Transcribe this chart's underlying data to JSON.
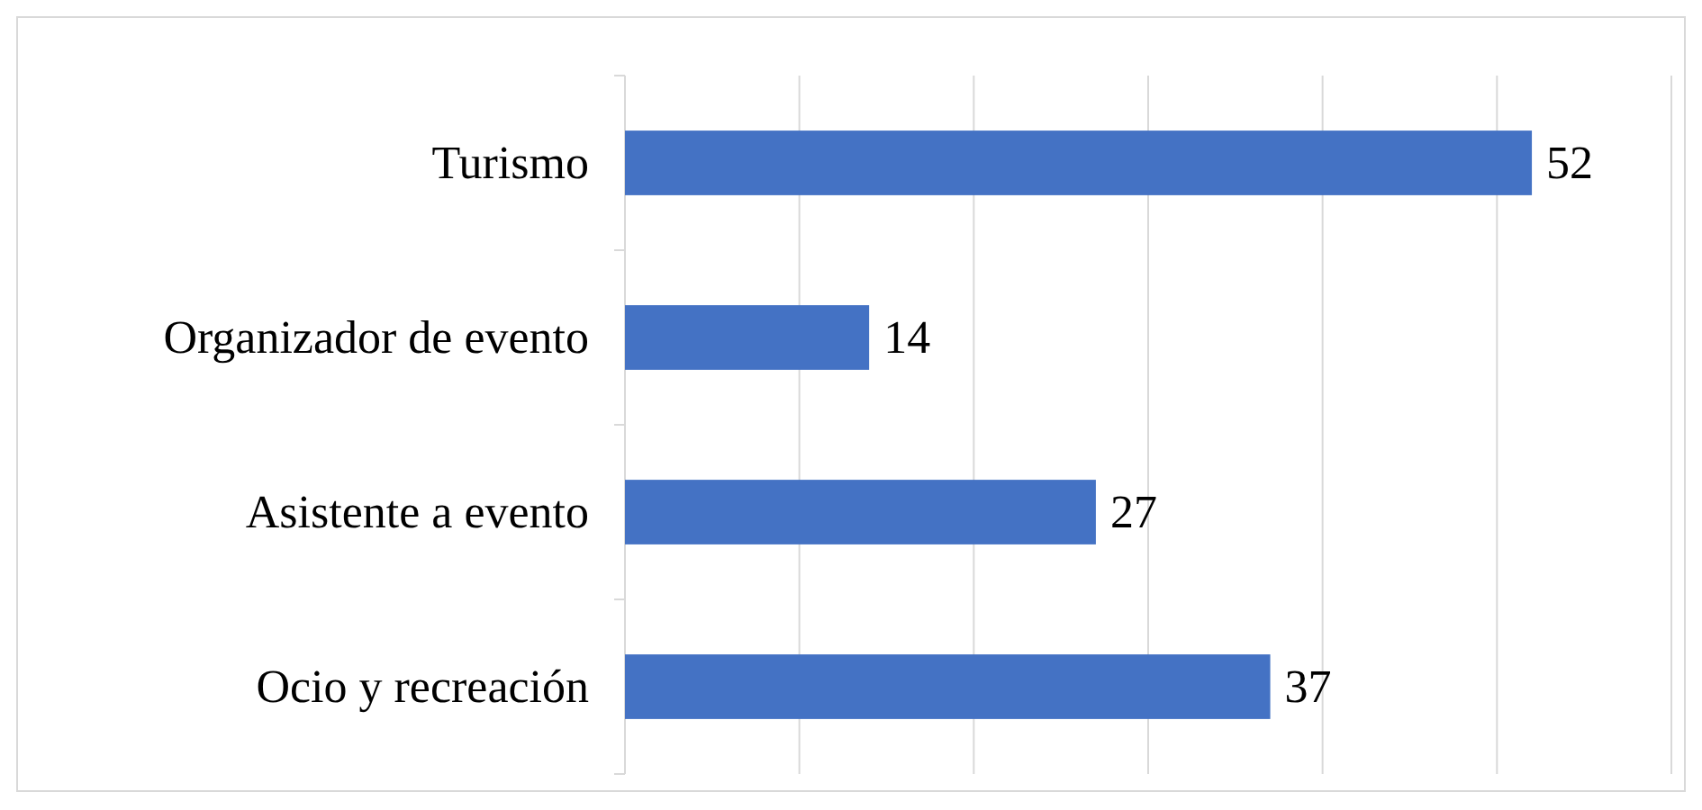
{
  "chart_data": {
    "type": "bar",
    "orientation": "horizontal",
    "categories": [
      "Turismo",
      "Organizador de evento",
      "Asistente a evento",
      "Ocio y recreación"
    ],
    "values": [
      52,
      14,
      27,
      37
    ],
    "color": "#4472c4",
    "data_labels": true,
    "xlim": [
      0,
      60
    ],
    "xticks": [
      {
        "value": 0,
        "label": null
      },
      {
        "value": 10,
        "label": null
      },
      {
        "value": 20,
        "label": null
      },
      {
        "value": 30,
        "label": null
      },
      {
        "value": 40,
        "label": null
      },
      {
        "value": 50,
        "label": null
      },
      {
        "value": 60,
        "label": null
      }
    ],
    "grid": "x",
    "tick_labels": "y"
  }
}
